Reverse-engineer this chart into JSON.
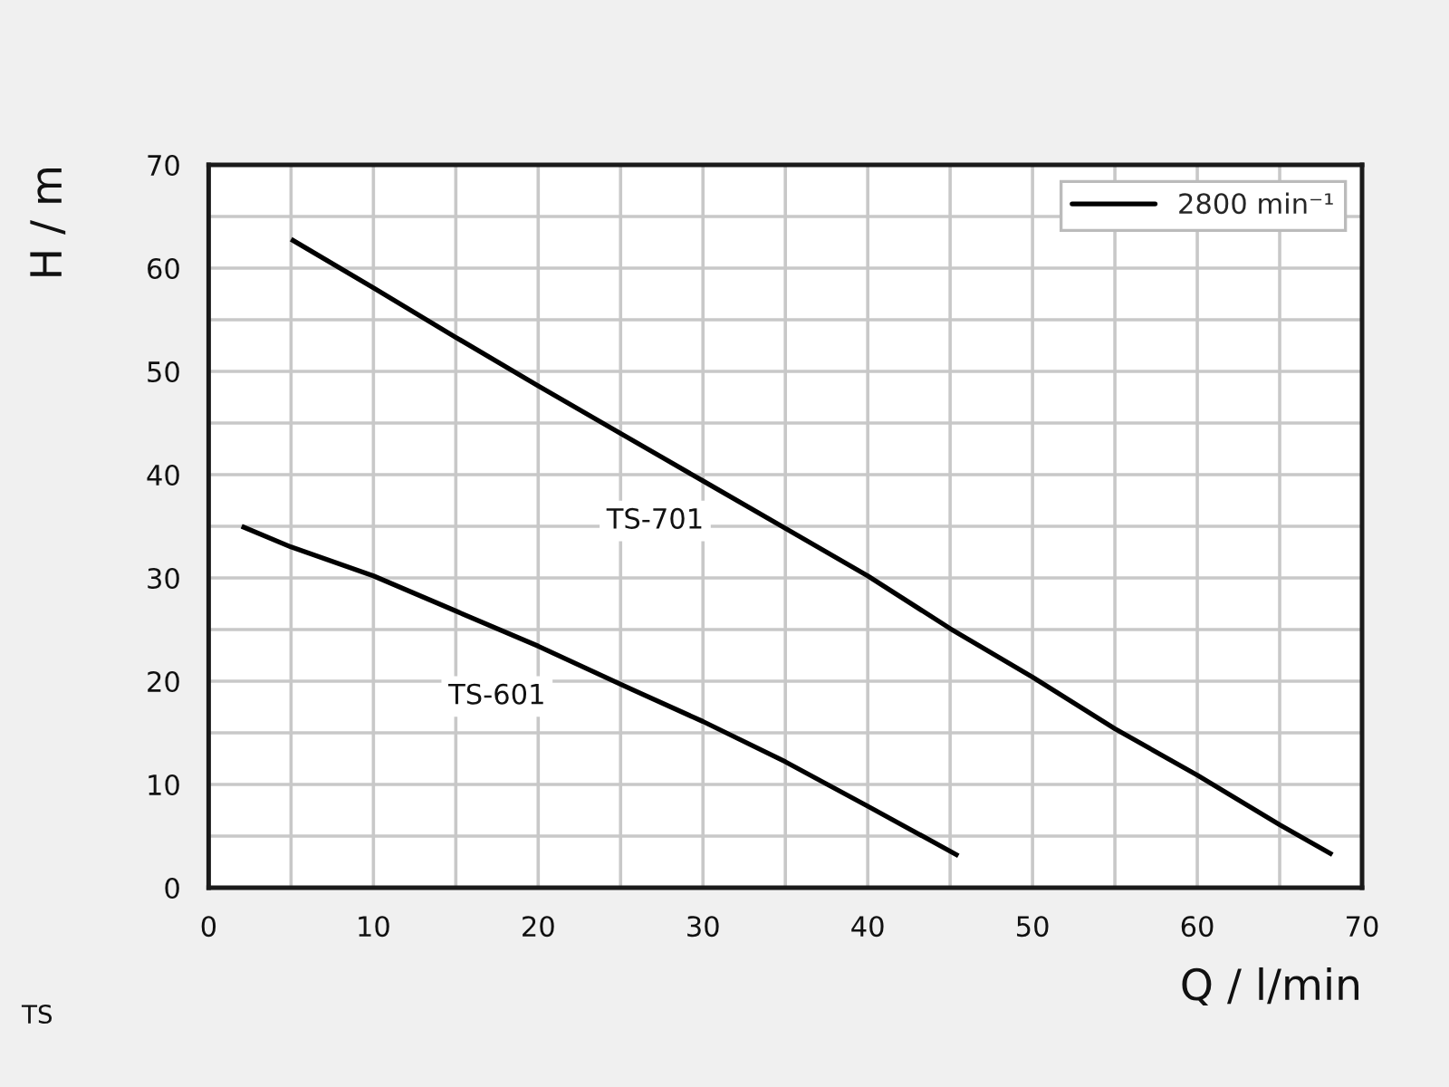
{
  "chart_data": {
    "type": "line",
    "xlabel": "Q / l/min",
    "ylabel": "H / m",
    "series": [
      {
        "name": "2800 min⁻¹",
        "color": "#000000",
        "x": [
          5,
          10,
          15,
          20,
          25,
          30,
          35,
          40,
          45,
          50,
          55,
          60,
          65,
          68.2
        ],
        "values": [
          62.8,
          58.1,
          53.3,
          48.6,
          44.0,
          39.4,
          34.8,
          30.2,
          25.1,
          20.4,
          15.4,
          10.9,
          6.1,
          3.2
        ]
      },
      {
        "color": "#000000",
        "x": [
          2,
          5,
          10,
          15,
          20,
          25,
          30,
          35,
          40,
          45.5
        ],
        "values": [
          35.0,
          33.0,
          30.2,
          26.8,
          23.4,
          19.7,
          16.1,
          12.2,
          7.9,
          3.1
        ]
      }
    ],
    "annotations": [
      {
        "text": "TS-701",
        "x": 27.1,
        "y": 42.1
      },
      {
        "text": "TS-601",
        "x": 17.5,
        "y": 25.1
      },
      "TS"
    ],
    "xlim": [
      0,
      70
    ],
    "ylim": [
      0,
      70
    ],
    "xticks": [
      0,
      {
        "value": 5,
        "label": null
      },
      10,
      {
        "value": 15,
        "label": null
      },
      20,
      {
        "value": 25,
        "label": null
      },
      30,
      {
        "value": 35,
        "label": null
      },
      40,
      {
        "value": 45,
        "label": null
      },
      50,
      {
        "value": 55,
        "label": null
      },
      60,
      {
        "value": 65,
        "label": null
      },
      70
    ],
    "yticks": [
      0,
      {
        "value": 5,
        "label": null
      },
      10,
      {
        "value": 15,
        "label": null
      },
      20,
      {
        "value": 25,
        "label": null
      },
      30,
      {
        "value": 35,
        "label": null
      },
      40,
      {
        "value": 45,
        "label": null
      },
      50,
      {
        "value": 55,
        "label": null
      },
      60,
      {
        "value": 65,
        "label": null
      },
      70
    ],
    "grid": true,
    "legend": "top right",
    "marker": "none",
    "line_style": "solid"
  }
}
